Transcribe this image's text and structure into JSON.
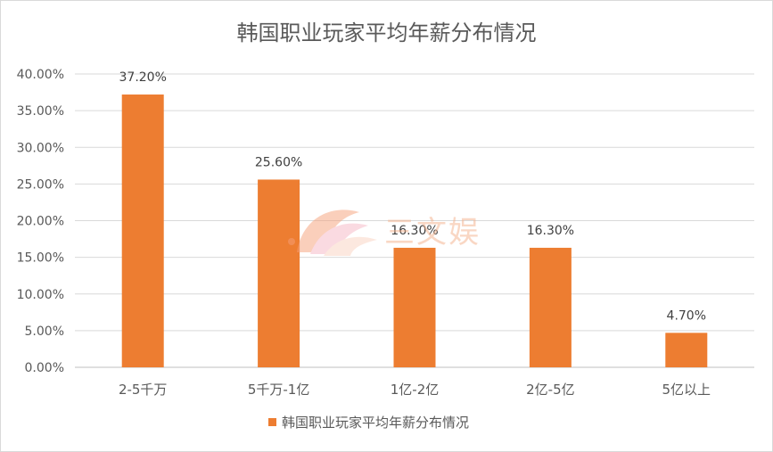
{
  "chart_data": {
    "type": "bar",
    "title": "韩国职业玩家平均年薪分布情况",
    "categories": [
      "2-5千万",
      "5千万-1亿",
      "1亿-2亿",
      "2亿-5亿",
      "5亿以上"
    ],
    "series": [
      {
        "name": "韩国职业玩家平均年薪分布情况",
        "values": [
          37.2,
          25.6,
          16.3,
          16.3,
          4.7
        ],
        "data_labels": [
          "37.20%",
          "25.60%",
          "16.30%",
          "16.30%",
          "4.70%"
        ],
        "color": "#ed7d31"
      }
    ],
    "y_ticks": [
      "0.00%",
      "5.00%",
      "10.00%",
      "15.00%",
      "20.00%",
      "25.00%",
      "30.00%",
      "35.00%",
      "40.00%"
    ],
    "ylim": [
      0,
      40
    ],
    "grid": true,
    "legend_position": "bottom"
  },
  "watermark": {
    "text": "三文娱",
    "icon": "peach-fan-logo-icon"
  }
}
